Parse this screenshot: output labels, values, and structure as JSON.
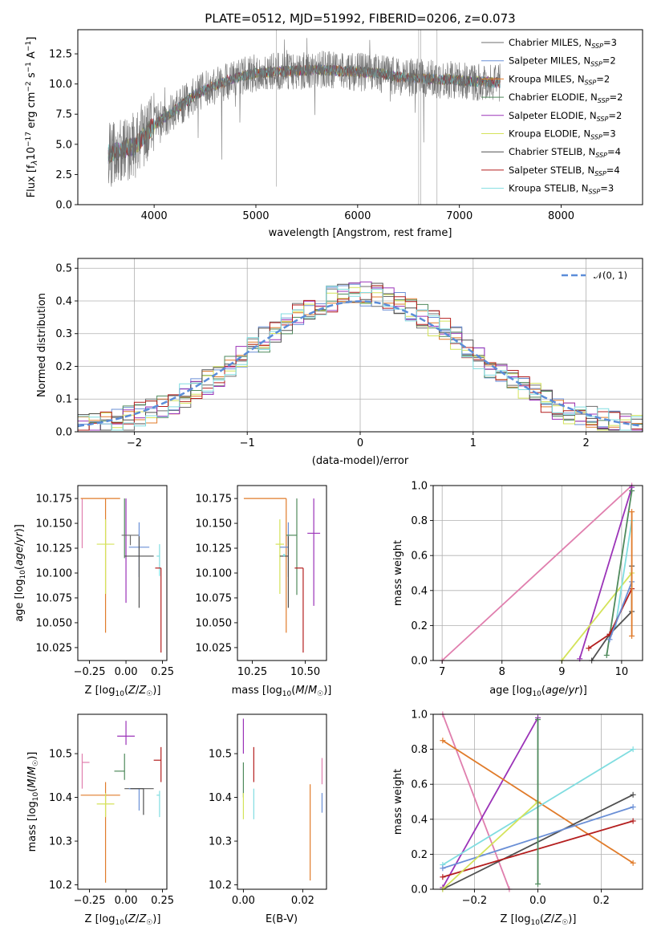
{
  "title": "PLATE=0512, MJD=51992, FIBERID=0206, z=0.073",
  "colors": {
    "chabrier_miles": "#6c6c6c",
    "salpeter_miles": "#6a8fd6",
    "kroupa_miles": "#e07b2a",
    "chabrier_elodie": "#4f8a5c",
    "salpeter_elodie": "#9b33b8",
    "kroupa_elodie": "#d4e35a",
    "chabrier_stelib": "#505050",
    "salpeter_stelib": "#b41e1e",
    "kroupa_stelib": "#80dde0",
    "pink": "#e07fae",
    "normal": "#5b8dd9"
  },
  "chart_data": [
    {
      "id": "spectrum",
      "type": "line",
      "title": "PLATE=0512, MJD=51992, FIBERID=0206, z=0.073",
      "xlabel": "wavelength [Angstrom, rest frame]",
      "ylabel": "Flux [f_λ 10^-17 erg cm^-2 s^-1 A^-1]",
      "xlim": [
        3250,
        8800
      ],
      "ylim": [
        0,
        14.5
      ],
      "xticks": [
        4000,
        5000,
        6000,
        7000,
        8000
      ],
      "yticks": [
        "0.0",
        "2.5",
        "5.0",
        "7.5",
        "10.0",
        "12.5"
      ],
      "x": [
        3550,
        3800,
        4000,
        4200,
        4400,
        4600,
        4800,
        5000,
        5200,
        5400,
        5600,
        5800,
        6000,
        6200,
        6400,
        6600,
        6800,
        7000,
        7200,
        7400
      ],
      "series": [
        {
          "name": "Chabrier MILES, N_SSP=3",
          "color": "#6c6c6c",
          "values": [
            4.2,
            4.8,
            6.6,
            7.8,
            9.1,
            9.9,
            10.5,
            10.9,
            11.0,
            11.1,
            11.2,
            11.1,
            11.0,
            10.9,
            10.6,
            10.5,
            10.4,
            10.3,
            10.2,
            10.1
          ]
        },
        {
          "name": "Salpeter MILES, N_SSP=2",
          "color": "#6a8fd6"
        },
        {
          "name": "Kroupa MILES, N_SSP=2",
          "color": "#e07b2a"
        },
        {
          "name": "Chabrier ELODIE, N_SSP=2",
          "color": "#4f8a5c"
        },
        {
          "name": "Salpeter ELODIE, N_SSP=2",
          "color": "#9b33b8"
        },
        {
          "name": "Kroupa ELODIE, N_SSP=3",
          "color": "#d4e35a"
        },
        {
          "name": "Chabrier STELIB, N_SSP=4",
          "color": "#505050"
        },
        {
          "name": "Salpeter STELIB, N_SSP=4",
          "color": "#b41e1e"
        },
        {
          "name": "Kroupa STELIB, N_SSP=3",
          "color": "#80dde0"
        }
      ],
      "legend": "upper right"
    },
    {
      "id": "residuals",
      "type": "histogram",
      "xlabel": "(data-model)/error",
      "ylabel": "Normed distribution",
      "xlim": [
        -2.5,
        2.5
      ],
      "ylim": [
        0,
        0.53
      ],
      "xticks": [
        "−2",
        "−1",
        "0",
        "1",
        "2"
      ],
      "yticks": [
        "0.0",
        "0.1",
        "0.2",
        "0.3",
        "0.4",
        "0.5"
      ],
      "reference": {
        "name": "𝒩(0, 1)",
        "mean": 0,
        "sd": 1
      },
      "legend": "upper right",
      "grid": true
    },
    {
      "id": "age_vs_Z",
      "type": "scatter",
      "xlabel": "Z [log10(Z/Z☉)]",
      "ylabel": "age [log10(age/yr)]",
      "xlim": [
        -0.33,
        0.28
      ],
      "ylim": [
        10.012,
        10.188
      ],
      "xticks": [
        "−0.25",
        "0.00",
        "0.25"
      ],
      "yticks": [
        "10.025",
        "10.050",
        "10.075",
        "10.100",
        "10.125",
        "10.150",
        "10.175"
      ],
      "points": [
        {
          "color": "#e07fae",
          "x": -0.3,
          "xerr": [
            0.0,
            0.0
          ],
          "y": 10.175,
          "yerr": [
            0.05,
            0.0
          ]
        },
        {
          "color": "#e07b2a",
          "x": -0.14,
          "xerr": [
            0.17,
            0.1
          ],
          "y": 10.175,
          "yerr": [
            0.135,
            0.0
          ]
        },
        {
          "color": "#d4e35a",
          "x": -0.14,
          "xerr": [
            0.06,
            0.06
          ],
          "y": 10.129,
          "yerr": [
            0.05,
            0.025
          ]
        },
        {
          "color": "#9b33b8",
          "x": 0.0,
          "xerr": [
            0.0,
            0.0
          ],
          "y": 10.14,
          "yerr": [
            0.07,
            0.035
          ]
        },
        {
          "color": "#4f8a5c",
          "x": -0.01,
          "xerr": [
            0.0,
            0.0
          ],
          "y": 10.175,
          "yerr": [
            0.06,
            0.0
          ]
        },
        {
          "color": "#6c6c6c",
          "x": 0.03,
          "xerr": [
            0.06,
            0.06
          ],
          "y": 10.138,
          "yerr": [
            0.01,
            0.0
          ]
        },
        {
          "color": "#6a8fd6",
          "x": 0.09,
          "xerr": [
            0.07,
            0.07
          ],
          "y": 10.126,
          "yerr": [
            0.03,
            0.025
          ]
        },
        {
          "color": "#505050",
          "x": 0.09,
          "xerr": [
            0.1,
            0.1
          ],
          "y": 10.117,
          "yerr": [
            0.052,
            0.02
          ]
        },
        {
          "color": "#80dde0",
          "x": 0.23,
          "xerr": [
            0.02,
            0.0
          ],
          "y": 10.117,
          "yerr": [
            0.02,
            0.012
          ]
        },
        {
          "color": "#b41e1e",
          "x": 0.24,
          "xerr": [
            0.04,
            0.0
          ],
          "y": 10.105,
          "yerr": [
            0.085,
            0.0
          ]
        }
      ]
    },
    {
      "id": "age_vs_mass",
      "type": "scatter",
      "xlabel": "mass [log10(M/M☉)]",
      "xlim": [
        10.18,
        10.6
      ],
      "ylim": [
        10.012,
        10.188
      ],
      "xticks": [
        "10.25",
        "10.50"
      ],
      "yticks": [
        "10.025",
        "10.050",
        "10.075",
        "10.100",
        "10.125",
        "10.150",
        "10.175"
      ],
      "points": [
        {
          "color": "#e07b2a",
          "x": 10.41,
          "xerr": [
            0.2,
            0.0
          ],
          "y": 10.175,
          "yerr": [
            0.135,
            0.0
          ]
        },
        {
          "color": "#d4e35a",
          "x": 10.38,
          "xerr": [
            0.02,
            0.02
          ],
          "y": 10.129,
          "yerr": [
            0.05,
            0.025
          ]
        },
        {
          "color": "#6c6c6c",
          "x": 10.42,
          "xerr": [
            0.0,
            0.0
          ],
          "y": 10.138,
          "yerr": [
            0.01,
            0.0
          ]
        },
        {
          "color": "#6a8fd6",
          "x": 10.42,
          "xerr": [
            0.04,
            0.0
          ],
          "y": 10.126,
          "yerr": [
            0.03,
            0.025
          ]
        },
        {
          "color": "#505050",
          "x": 10.42,
          "xerr": [
            0.04,
            0.0
          ],
          "y": 10.117,
          "yerr": [
            0.052,
            0.02
          ]
        },
        {
          "color": "#4f8a5c",
          "x": 10.46,
          "xerr": [
            0.05,
            0.0
          ],
          "y": 10.138,
          "yerr": [
            0.06,
            0.037
          ]
        },
        {
          "color": "#80dde0",
          "x": 10.4,
          "xerr": [
            0.0,
            0.0
          ],
          "y": 10.118,
          "yerr": [
            0.0,
            0.0
          ]
        },
        {
          "color": "#b41e1e",
          "x": 10.49,
          "xerr": [
            0.04,
            0.0
          ],
          "y": 10.105,
          "yerr": [
            0.085,
            0.0
          ]
        },
        {
          "color": "#9b33b8",
          "x": 10.54,
          "xerr": [
            0.03,
            0.03
          ],
          "y": 10.14,
          "yerr": [
            0.073,
            0.035
          ]
        }
      ]
    },
    {
      "id": "massweight_vs_age",
      "type": "line",
      "xlabel": "age [log10(age/yr)]",
      "ylabel": "mass weight",
      "xlim": [
        6.85,
        10.35
      ],
      "ylim": [
        0,
        1
      ],
      "xticks": [
        "7",
        "8",
        "9",
        "10"
      ],
      "yticks": [
        "0.0",
        "0.2",
        "0.4",
        "0.6",
        "0.8",
        "1.0"
      ],
      "grid": true,
      "series": [
        {
          "color": "#e07fae",
          "x": [
            7.0,
            10.17
          ],
          "y": [
            0.0,
            1.0
          ]
        },
        {
          "color": "#9b33b8",
          "x": [
            9.3,
            10.17
          ],
          "y": [
            0.01,
            0.99
          ]
        },
        {
          "color": "#d4e35a",
          "x": [
            9.0,
            10.17
          ],
          "y": [
            0.0,
            0.5
          ]
        },
        {
          "color": "#4f8a5c",
          "x": [
            9.75,
            10.17
          ],
          "y": [
            0.03,
            0.97
          ]
        },
        {
          "color": "#80dde0",
          "x": [
            9.9,
            10.17
          ],
          "y": [
            0.2,
            0.8
          ]
        },
        {
          "color": "#505050",
          "x": [
            9.5,
            9.8,
            10.17,
            10.17
          ],
          "y": [
            0.0,
            0.15,
            0.28,
            0.54
          ]
        },
        {
          "color": "#b41e1e",
          "x": [
            9.45,
            9.8,
            10.17
          ],
          "y": [
            0.07,
            0.15,
            0.41
          ]
        },
        {
          "color": "#6a8fd6",
          "x": [
            9.8,
            10.17
          ],
          "y": [
            0.12,
            0.45
          ]
        },
        {
          "color": "#e07b2a",
          "x": [
            10.17,
            10.17
          ],
          "y": [
            0.14,
            0.85
          ]
        }
      ]
    },
    {
      "id": "mass_vs_Z",
      "type": "scatter",
      "xlabel": "Z [log10(Z/Z☉)]",
      "ylabel": "mass [log10(M/M☉)]",
      "xlim": [
        -0.33,
        0.28
      ],
      "ylim": [
        10.19,
        10.59
      ],
      "xticks": [
        "−0.25",
        "0.00",
        "0.25"
      ],
      "yticks": [
        "10.2",
        "10.3",
        "10.4",
        "10.5"
      ],
      "points": [
        {
          "color": "#e07fae",
          "x": -0.3,
          "xerr": [
            0.0,
            0.05
          ],
          "y": 10.48,
          "yerr": [
            0.06,
            0.02
          ]
        },
        {
          "color": "#e07b2a",
          "x": -0.14,
          "xerr": [
            0.17,
            0.1
          ],
          "y": 10.405,
          "yerr": [
            0.2,
            0.03
          ]
        },
        {
          "color": "#d4e35a",
          "x": -0.14,
          "xerr": [
            0.06,
            0.06
          ],
          "y": 10.385,
          "yerr": [
            0.03,
            0.025
          ]
        },
        {
          "color": "#9b33b8",
          "x": 0.0,
          "xerr": [
            0.06,
            0.06
          ],
          "y": 10.54,
          "yerr": [
            0.02,
            0.035
          ]
        },
        {
          "color": "#4f8a5c",
          "x": -0.01,
          "xerr": [
            0.07,
            0.0
          ],
          "y": 10.46,
          "yerr": [
            0.02,
            0.04
          ]
        },
        {
          "color": "#6c6c6c",
          "x": 0.09,
          "xerr": [
            0.1,
            0.1
          ],
          "y": 10.42,
          "yerr": [
            0.0,
            0.0
          ]
        },
        {
          "color": "#6a8fd6",
          "x": 0.09,
          "xerr": [
            0.07,
            0.0
          ],
          "y": 10.42,
          "yerr": [
            0.05,
            0.0
          ]
        },
        {
          "color": "#505050",
          "x": 0.12,
          "xerr": [
            0.09,
            0.0
          ],
          "y": 10.42,
          "yerr": [
            0.06,
            0.0
          ]
        },
        {
          "color": "#80dde0",
          "x": 0.23,
          "xerr": [
            0.02,
            0.0
          ],
          "y": 10.405,
          "yerr": [
            0.05,
            0.01
          ]
        },
        {
          "color": "#b41e1e",
          "x": 0.24,
          "xerr": [
            0.05,
            0.0
          ],
          "y": 10.485,
          "yerr": [
            0.05,
            0.03
          ]
        }
      ]
    },
    {
      "id": "mass_vs_EBV",
      "type": "scatter",
      "xlabel": "E(B-V)",
      "xlim": [
        -0.002,
        0.028
      ],
      "ylim": [
        10.19,
        10.59
      ],
      "xticks": [
        "0.00",
        "0.02"
      ],
      "yticks": [
        "10.2",
        "10.3",
        "10.4",
        "10.5"
      ],
      "points": [
        {
          "color": "#9b33b8",
          "x": 0.0,
          "xerr": [
            0.0,
            0.0
          ],
          "y": 10.54,
          "yerr": [
            0.04,
            0.04
          ]
        },
        {
          "color": "#4f8a5c",
          "x": 0.0,
          "xerr": [
            0.0,
            0.0
          ],
          "y": 10.44,
          "yerr": [
            0.04,
            0.04
          ]
        },
        {
          "color": "#d4e35a",
          "x": 0.0,
          "xerr": [
            0.0,
            0.0
          ],
          "y": 10.38,
          "yerr": [
            0.03,
            0.03
          ]
        },
        {
          "color": "#b41e1e",
          "x": 0.0035,
          "xerr": [
            0.0,
            0.0
          ],
          "y": 10.485,
          "yerr": [
            0.05,
            0.03
          ]
        },
        {
          "color": "#80dde0",
          "x": 0.0035,
          "xerr": [
            0.0,
            0.0
          ],
          "y": 10.395,
          "yerr": [
            0.045,
            0.025
          ]
        },
        {
          "color": "#e07b2a",
          "x": 0.0225,
          "xerr": [
            0.0,
            0.0
          ],
          "y": 10.33,
          "yerr": [
            0.12,
            0.1
          ]
        },
        {
          "color": "#e07fae",
          "x": 0.0265,
          "xerr": [
            0.0,
            0.0
          ],
          "y": 10.46,
          "yerr": [
            0.03,
            0.03
          ]
        },
        {
          "color": "#6a8fd6",
          "x": 0.0265,
          "xerr": [
            0.0,
            0.0
          ],
          "y": 10.41,
          "yerr": [
            0.045,
            0.0
          ]
        }
      ]
    },
    {
      "id": "massweight_vs_Z",
      "type": "line",
      "xlabel": "Z [log10(Z/Z☉)]",
      "ylabel": "mass weight",
      "xlim": [
        -0.33,
        0.33
      ],
      "ylim": [
        0,
        1
      ],
      "xticks": [
        "−0.2",
        "0.0",
        "0.2"
      ],
      "yticks": [
        "0.0",
        "0.2",
        "0.4",
        "0.6",
        "0.8",
        "1.0"
      ],
      "grid": true,
      "series": [
        {
          "color": "#e07fae",
          "x": [
            -0.3,
            -0.09
          ],
          "y": [
            1.0,
            0.0
          ]
        },
        {
          "color": "#9b33b8",
          "x": [
            -0.3,
            0.0
          ],
          "y": [
            0.01,
            0.98
          ]
        },
        {
          "color": "#e07b2a",
          "x": [
            -0.3,
            0.3
          ],
          "y": [
            0.85,
            0.15
          ]
        },
        {
          "color": "#80dde0",
          "x": [
            -0.3,
            0.3
          ],
          "y": [
            0.14,
            0.8
          ]
        },
        {
          "color": "#505050",
          "x": [
            -0.3,
            0.3
          ],
          "y": [
            0.0,
            0.54
          ]
        },
        {
          "color": "#6a8fd6",
          "x": [
            -0.3,
            0.3
          ],
          "y": [
            0.12,
            0.47
          ]
        },
        {
          "color": "#b41e1e",
          "x": [
            -0.3,
            0.3
          ],
          "y": [
            0.07,
            0.39
          ]
        },
        {
          "color": "#d4e35a",
          "x": [
            -0.3,
            0.0
          ],
          "y": [
            0.0,
            0.5
          ]
        },
        {
          "color": "#4f8a5c",
          "x": [
            0.0,
            0.0
          ],
          "y": [
            0.03,
            0.97
          ]
        }
      ]
    }
  ]
}
